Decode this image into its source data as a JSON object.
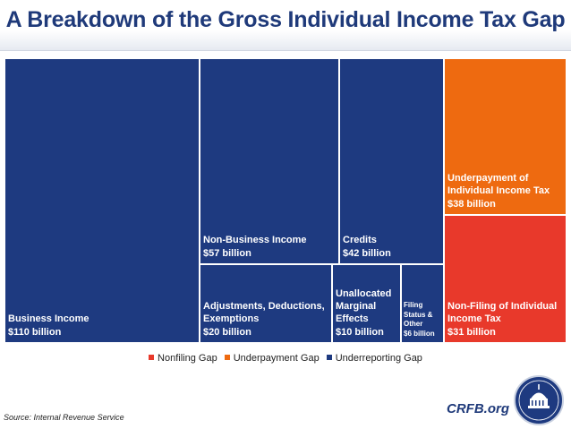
{
  "header": {
    "title": "A Breakdown of the Gross Individual Income Tax Gap"
  },
  "chart_data": {
    "type": "treemap",
    "title": "A Breakdown of the Gross Individual Income Tax Gap",
    "legend_placement": "bottom-center",
    "series": [
      {
        "name": "Nonfiling Gap",
        "color": "#e8392b"
      },
      {
        "name": "Underpayment Gap",
        "color": "#ee6a10"
      },
      {
        "name": "Underreporting Gap",
        "color": "#1e3a80"
      }
    ],
    "tiles": [
      {
        "id": "business-income",
        "series": "Underreporting Gap",
        "lines": [
          "Business Income"
        ],
        "value_label": "$110 billion",
        "value": 110
      },
      {
        "id": "non-business-income",
        "series": "Underreporting Gap",
        "lines": [
          "Non-Business Income"
        ],
        "value_label": "$57 billion",
        "value": 57
      },
      {
        "id": "credits",
        "series": "Underreporting Gap",
        "lines": [
          "Credits"
        ],
        "value_label": "$42 billion",
        "value": 42
      },
      {
        "id": "adjustments",
        "series": "Underreporting Gap",
        "lines": [
          "Adjustments, Deductions,",
          "Exemptions"
        ],
        "value_label": "$20 billion",
        "value": 20
      },
      {
        "id": "unallocated",
        "series": "Underreporting Gap",
        "lines": [
          "Unallocated",
          "Marginal",
          "Effects"
        ],
        "value_label": "$10 billion",
        "value": 10
      },
      {
        "id": "filing-status",
        "series": "Underreporting Gap",
        "lines": [
          "Filing",
          "Status &",
          "Other"
        ],
        "value_label": "$6 billion",
        "value": 6
      },
      {
        "id": "underpayment",
        "series": "Underpayment Gap",
        "lines": [
          "Underpayment of",
          "Individual Income Tax"
        ],
        "value_label": "$38 billion",
        "value": 38
      },
      {
        "id": "non-filing",
        "series": "Nonfiling Gap",
        "lines": [
          "Non-Filing of Individual",
          "Income Tax"
        ],
        "value_label": "$31 billion",
        "value": 31
      }
    ]
  },
  "footer": {
    "source": "Source: Internal Revenue Service",
    "brand": "CRFB.org"
  }
}
